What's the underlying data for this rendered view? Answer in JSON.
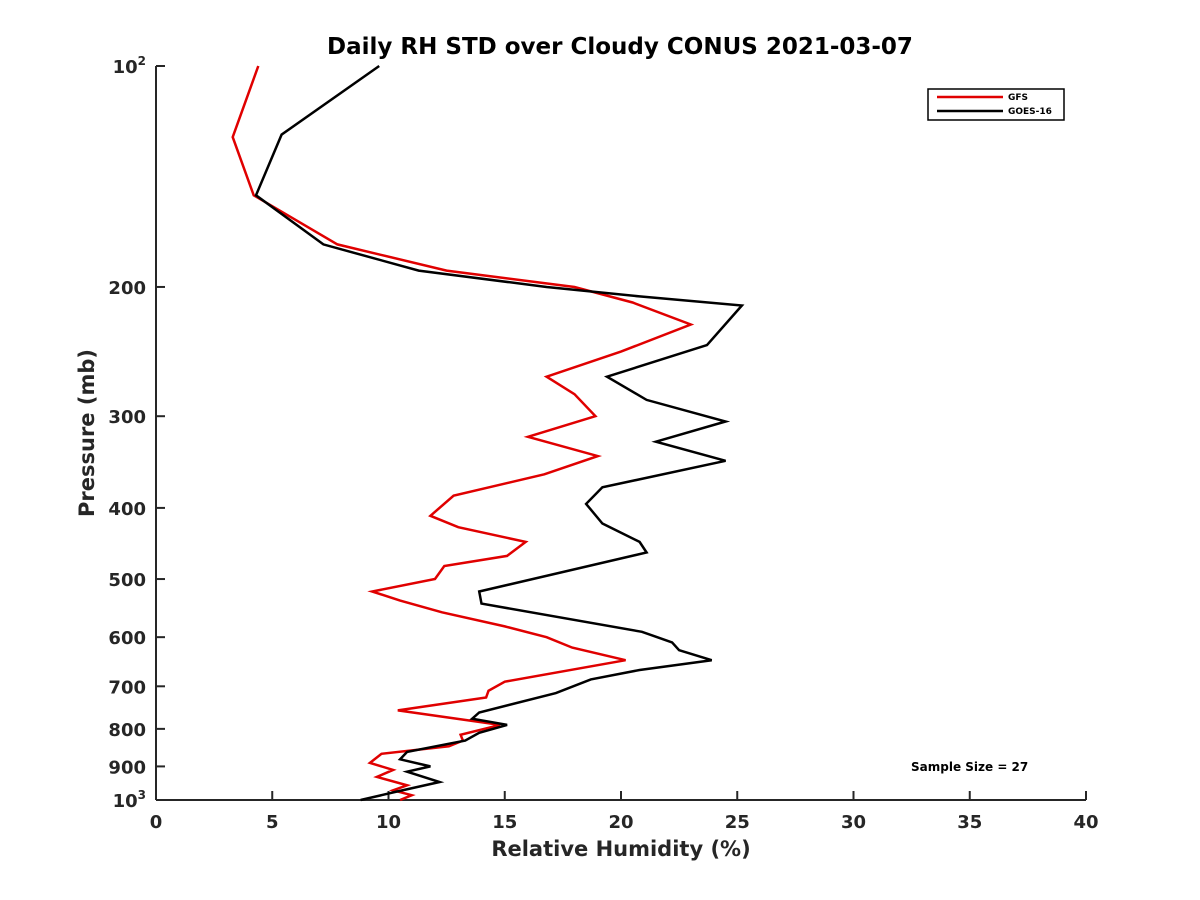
{
  "chart_data": {
    "type": "line",
    "title": "Daily RH STD over Cloudy CONUS 2021-03-07",
    "xlabel": "Relative Humidity (%)",
    "ylabel": "Pressure (mb)",
    "xlim": [
      0,
      40
    ],
    "ylim": [
      100,
      1000
    ],
    "y_scale": "log",
    "y_reversed": true,
    "x_ticks": [
      "0",
      "5",
      "10",
      "15",
      "20",
      "25",
      "30",
      "35",
      "40"
    ],
    "y_ticks": [
      {
        "value": 100,
        "base": "10",
        "exp": "2"
      },
      {
        "value": 200,
        "label": "200"
      },
      {
        "value": 300,
        "label": "300"
      },
      {
        "value": 400,
        "label": "400"
      },
      {
        "value": 500,
        "label": "500"
      },
      {
        "value": 600,
        "label": "600"
      },
      {
        "value": 700,
        "label": "700"
      },
      {
        "value": 800,
        "label": "800"
      },
      {
        "value": 900,
        "label": "900"
      },
      {
        "value": 1000,
        "base": "10",
        "exp": "3"
      }
    ],
    "grid": false,
    "legend_position": "top-right",
    "annotation": "Sample Size = 27",
    "series": [
      {
        "name": "GFS",
        "color": "#e00000",
        "points": [
          [
            4.4,
            100
          ],
          [
            3.3,
            125
          ],
          [
            4.2,
            150
          ],
          [
            7.8,
            175
          ],
          [
            12.5,
            190
          ],
          [
            18.0,
            200
          ],
          [
            20.5,
            210
          ],
          [
            23.0,
            225
          ],
          [
            20.0,
            245
          ],
          [
            16.8,
            265
          ],
          [
            18.0,
            280
          ],
          [
            18.9,
            300
          ],
          [
            16.0,
            320
          ],
          [
            19.0,
            340
          ],
          [
            16.7,
            360
          ],
          [
            12.8,
            385
          ],
          [
            11.8,
            410
          ],
          [
            13.0,
            425
          ],
          [
            15.9,
            445
          ],
          [
            15.1,
            465
          ],
          [
            12.4,
            480
          ],
          [
            12.0,
            500
          ],
          [
            9.3,
            520
          ],
          [
            10.5,
            535
          ],
          [
            12.3,
            555
          ],
          [
            15.0,
            580
          ],
          [
            16.8,
            600
          ],
          [
            17.9,
            620
          ],
          [
            20.2,
            645
          ],
          [
            15.0,
            690
          ],
          [
            14.3,
            710
          ],
          [
            14.2,
            725
          ],
          [
            10.4,
            755
          ],
          [
            14.8,
            790
          ],
          [
            13.1,
            815
          ],
          [
            13.2,
            830
          ],
          [
            12.6,
            845
          ],
          [
            9.7,
            865
          ],
          [
            9.2,
            890
          ],
          [
            10.2,
            910
          ],
          [
            9.5,
            930
          ],
          [
            10.8,
            955
          ],
          [
            10.2,
            970
          ],
          [
            11.0,
            985
          ],
          [
            10.5,
            1000
          ]
        ]
      },
      {
        "name": "GOES-16",
        "color": "#000000",
        "points": [
          [
            9.6,
            100
          ],
          [
            5.4,
            124
          ],
          [
            4.3,
            150
          ],
          [
            7.2,
            175
          ],
          [
            11.3,
            190
          ],
          [
            16.8,
            200
          ],
          [
            20.8,
            206
          ],
          [
            25.2,
            212
          ],
          [
            23.7,
            240
          ],
          [
            19.4,
            265
          ],
          [
            21.1,
            285
          ],
          [
            24.5,
            305
          ],
          [
            21.5,
            325
          ],
          [
            24.5,
            345
          ],
          [
            19.2,
            375
          ],
          [
            18.5,
            395
          ],
          [
            19.2,
            420
          ],
          [
            20.8,
            445
          ],
          [
            21.1,
            460
          ],
          [
            13.9,
            520
          ],
          [
            14.0,
            540
          ],
          [
            20.9,
            590
          ],
          [
            22.2,
            610
          ],
          [
            22.5,
            625
          ],
          [
            23.9,
            645
          ],
          [
            20.8,
            665
          ],
          [
            18.7,
            685
          ],
          [
            17.2,
            715
          ],
          [
            13.9,
            760
          ],
          [
            13.6,
            775
          ],
          [
            15.1,
            790
          ],
          [
            13.9,
            810
          ],
          [
            13.3,
            830
          ],
          [
            10.8,
            860
          ],
          [
            10.5,
            880
          ],
          [
            11.8,
            900
          ],
          [
            10.8,
            915
          ],
          [
            12.2,
            945
          ],
          [
            10.3,
            975
          ],
          [
            8.8,
            1000
          ]
        ]
      }
    ]
  }
}
